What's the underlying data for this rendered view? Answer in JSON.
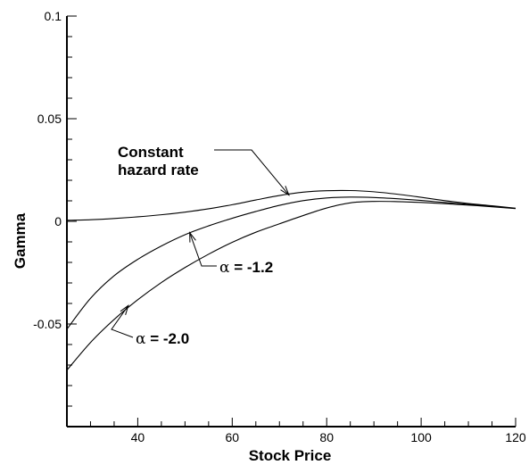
{
  "chart_data": {
    "type": "line",
    "title": "",
    "xlabel": "Stock Price",
    "ylabel": "Gamma",
    "xlim": [
      25,
      120
    ],
    "ylim": [
      -0.1,
      0.1
    ],
    "x_ticks": [
      {
        "value": 40,
        "label": "40"
      },
      {
        "value": 60,
        "label": "60"
      },
      {
        "value": 80,
        "label": "80"
      },
      {
        "value": 100,
        "label": "100"
      },
      {
        "value": 120,
        "label": "120"
      }
    ],
    "y_ticks": [
      {
        "value": 0.1,
        "label": "0.1"
      },
      {
        "value": 0.05,
        "label": "0.05"
      },
      {
        "value": 0,
        "label": "0"
      },
      {
        "value": -0.05,
        "label": "-0.05"
      }
    ],
    "grid": false,
    "legend": "none",
    "series": [
      {
        "x": [
          25,
          30,
          35,
          40,
          45,
          50,
          55,
          60,
          65,
          70,
          75,
          80,
          85,
          90,
          95,
          100,
          105,
          110,
          115,
          120
        ],
        "y": [
          0.0005,
          0.0008,
          0.0014,
          0.0022,
          0.0032,
          0.0045,
          0.0061,
          0.0081,
          0.0104,
          0.0126,
          0.0142,
          0.0149,
          0.015,
          0.0144,
          0.0132,
          0.0117,
          0.0101,
          0.0087,
          0.0076,
          0.0064
        ]
      },
      {
        "x": [
          25,
          30,
          35,
          40,
          45,
          50,
          55,
          60,
          65,
          70,
          75,
          80,
          85,
          90,
          95,
          100,
          105,
          110,
          115,
          120
        ],
        "y": [
          -0.0525,
          -0.0375,
          -0.0265,
          -0.0185,
          -0.012,
          -0.0065,
          -0.0022,
          0.0015,
          0.0048,
          0.0078,
          0.0101,
          0.0114,
          0.0118,
          0.0116,
          0.011,
          0.0102,
          0.0092,
          0.0083,
          0.0073,
          0.0063
        ]
      },
      {
        "x": [
          25,
          30,
          35,
          40,
          45,
          50,
          55,
          60,
          65,
          70,
          75,
          80,
          85,
          90,
          95,
          100,
          105,
          110,
          115,
          120
        ],
        "y": [
          -0.0725,
          -0.059,
          -0.0478,
          -0.0382,
          -0.0298,
          -0.0225,
          -0.016,
          -0.0102,
          -0.0053,
          -0.0012,
          0.0028,
          0.0065,
          0.009,
          0.0097,
          0.0096,
          0.0092,
          0.0086,
          0.0079,
          0.0071,
          0.0062
        ]
      }
    ],
    "annotations": [
      {
        "lines": [
          "Constant",
          "hazard rate"
        ],
        "arrow_to": {
          "x": 72,
          "y": 0.0128
        }
      },
      {
        "symbol": "α",
        "text": " = -1.2",
        "arrow_to": {
          "x": 51,
          "y": -0.0055
        }
      },
      {
        "symbol": "α",
        "text": " = -2.0",
        "arrow_to": {
          "x": 38,
          "y": -0.041
        }
      }
    ]
  }
}
